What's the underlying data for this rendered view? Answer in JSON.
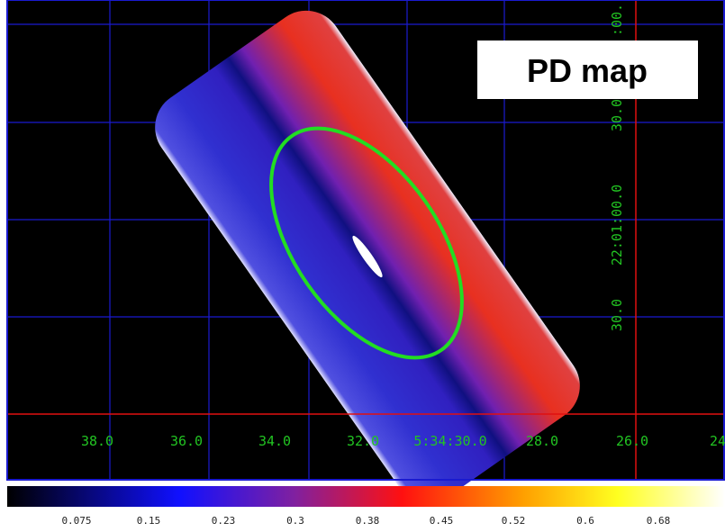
{
  "panel_label": "PD map",
  "x_axis_labels": [
    "38.0",
    "36.0",
    "34.0",
    "32.0",
    "5:34:30.0",
    "28.0",
    "26.0",
    "24"
  ],
  "y_axis_labels": [
    ":00.",
    "30.0",
    "22:01:00.0",
    "30.0"
  ],
  "colorbar_labels": [
    "0.075",
    "0.15",
    "0.23",
    "0.3",
    "0.38",
    "0.45",
    "0.52",
    "0.6",
    "0.68"
  ]
}
